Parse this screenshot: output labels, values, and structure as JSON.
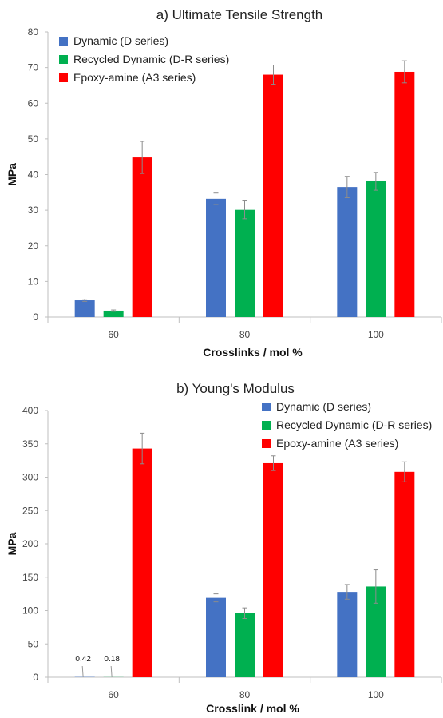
{
  "chart_data": [
    {
      "type": "bar",
      "title": "a) Ultimate Tensile Strength",
      "xlabel": "Crosslinks / mol %",
      "ylabel": "MPa",
      "categories": [
        "60",
        "80",
        "100"
      ],
      "ylim": [
        0,
        80
      ],
      "yticks": [
        0,
        10,
        20,
        30,
        40,
        50,
        60,
        70,
        80
      ],
      "grid": false,
      "legend_position": "top-left",
      "series": [
        {
          "name": "Dynamic (D series)",
          "color": "#4472C4",
          "values": [
            4.7,
            33.2,
            36.5
          ],
          "errors": [
            0.3,
            1.6,
            3.0
          ]
        },
        {
          "name": "Recycled Dynamic (D-R series)",
          "color": "#00B050",
          "values": [
            1.8,
            30.1,
            38.1
          ],
          "errors": [
            0.2,
            2.5,
            2.5
          ]
        },
        {
          "name": "Epoxy-amine (A3 series)",
          "color": "#FF0000",
          "values": [
            44.8,
            68.0,
            68.8
          ],
          "errors": [
            4.5,
            2.7,
            3.1
          ]
        }
      ],
      "annotations": []
    },
    {
      "type": "bar",
      "title": "b) Young's Modulus",
      "xlabel": "Crosslink / mol %",
      "ylabel": "MPa",
      "categories": [
        "60",
        "80",
        "100"
      ],
      "ylim": [
        0,
        400
      ],
      "yticks": [
        0,
        50,
        100,
        150,
        200,
        250,
        300,
        350,
        400
      ],
      "grid": false,
      "legend_position": "top-right",
      "series": [
        {
          "name": "Dynamic (D series)",
          "color": "#4472C4",
          "values": [
            0.42,
            119,
            128
          ],
          "errors": [
            0,
            6,
            11
          ]
        },
        {
          "name": "Recycled Dynamic (D-R series)",
          "color": "#00B050",
          "values": [
            0.18,
            96,
            136
          ],
          "errors": [
            0,
            8,
            25
          ]
        },
        {
          "name": "Epoxy-amine (A3 series)",
          "color": "#FF0000",
          "values": [
            343,
            321,
            308
          ],
          "errors": [
            23,
            11,
            15
          ]
        }
      ],
      "annotations": [
        {
          "text": "0.42",
          "series": 0,
          "category": 0
        },
        {
          "text": "0.18",
          "series": 1,
          "category": 0
        }
      ]
    }
  ]
}
